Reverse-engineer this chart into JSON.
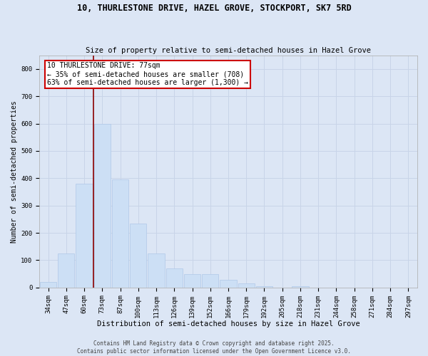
{
  "title": "10, THURLESTONE DRIVE, HAZEL GROVE, STOCKPORT, SK7 5RD",
  "subtitle": "Size of property relative to semi-detached houses in Hazel Grove",
  "xlabel": "Distribution of semi-detached houses by size in Hazel Grove",
  "ylabel": "Number of semi-detached properties",
  "bar_color": "#ccdff5",
  "bar_edge_color": "#b0c8e8",
  "categories": [
    "34sqm",
    "47sqm",
    "60sqm",
    "73sqm",
    "87sqm",
    "100sqm",
    "113sqm",
    "126sqm",
    "139sqm",
    "152sqm",
    "166sqm",
    "179sqm",
    "192sqm",
    "205sqm",
    "218sqm",
    "231sqm",
    "244sqm",
    "258sqm",
    "271sqm",
    "284sqm",
    "297sqm"
  ],
  "values": [
    20,
    125,
    380,
    600,
    395,
    235,
    125,
    70,
    50,
    50,
    28,
    15,
    6,
    0,
    6,
    0,
    0,
    0,
    0,
    0,
    0
  ],
  "property_bin_index": 2.5,
  "property_label": "10 THURLESTONE DRIVE: 77sqm",
  "annotation_line1": "← 35% of semi-detached houses are smaller (708)",
  "annotation_line2": "63% of semi-detached houses are larger (1,300) →",
  "vline_color": "#8b0000",
  "annotation_box_color": "#cc0000",
  "annotation_text_color": "#000000",
  "grid_color": "#c8d4e8",
  "background_color": "#dce6f5",
  "ylim": [
    0,
    850
  ],
  "yticks": [
    0,
    100,
    200,
    300,
    400,
    500,
    600,
    700,
    800
  ],
  "footer_line1": "Contains HM Land Registry data © Crown copyright and database right 2025.",
  "footer_line2": "Contains public sector information licensed under the Open Government Licence v3.0.",
  "title_fontsize": 8.5,
  "subtitle_fontsize": 7.5,
  "xlabel_fontsize": 7.5,
  "ylabel_fontsize": 7,
  "tick_fontsize": 6.5,
  "annotation_fontsize": 7,
  "footer_fontsize": 5.5
}
